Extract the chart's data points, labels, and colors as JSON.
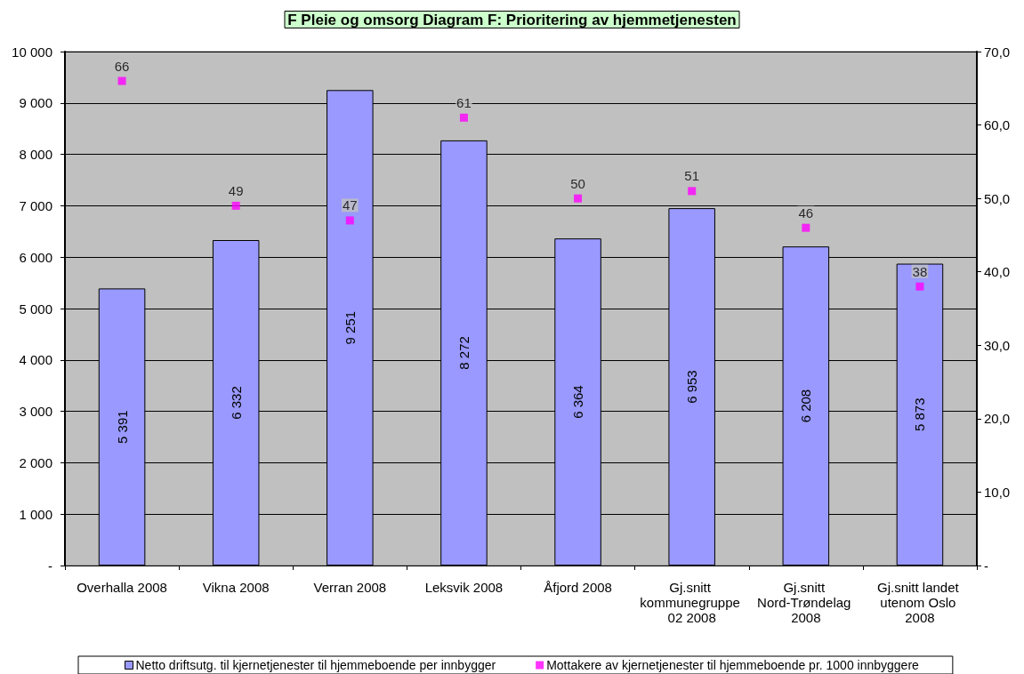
{
  "chart_data": {
    "type": "bar",
    "title": "F Pleie og omsorg Diagram F: Prioritering av hjemmetjenesten",
    "categories": [
      "Overhalla 2008",
      "Vikna 2008",
      "Verran 2008",
      "Leksvik 2008",
      "Åfjord 2008",
      "Gj.snitt kommunegruppe 02 2008",
      "Gj.snitt Nord-Trøndelag 2008",
      "Gj.snitt landet utenom Oslo 2008"
    ],
    "series": [
      {
        "name": "Netto driftsutg. til kjernetjenester til hjemmeboende per innbygger",
        "color": "#9999ff",
        "values": [
          5391,
          6332,
          9251,
          8272,
          6364,
          6953,
          6208,
          5873
        ],
        "value_labels": [
          "5 391",
          "6 332",
          "9 251",
          "8 272",
          "6 364",
          "6 953",
          "6 208",
          "5 873"
        ]
      },
      {
        "name": "Mottakere av kjernetjenester til hjemmeboende pr. 1000 innbyggere",
        "type": "scatter",
        "axis": "y2",
        "color": "#ff00ff",
        "values": [
          66,
          49,
          47,
          61,
          50,
          51,
          46,
          38
        ],
        "value_labels": [
          "66",
          "49",
          "47",
          "61",
          "50",
          "51",
          "46",
          "38"
        ]
      }
    ],
    "ylim": [
      0,
      10000
    ],
    "yticks": [
      {
        "value": 0,
        "label": "-"
      },
      {
        "value": 1000,
        "label": "1 000"
      },
      {
        "value": 2000,
        "label": "2 000"
      },
      {
        "value": 3000,
        "label": "3 000"
      },
      {
        "value": 4000,
        "label": "4 000"
      },
      {
        "value": 5000,
        "label": "5 000"
      },
      {
        "value": 6000,
        "label": "6 000"
      },
      {
        "value": 7000,
        "label": "7 000"
      },
      {
        "value": 8000,
        "label": "8 000"
      },
      {
        "value": 9000,
        "label": "9 000"
      },
      {
        "value": 10000,
        "label": "10 000"
      }
    ],
    "y2lim": [
      0,
      70
    ],
    "y2ticks": [
      {
        "value": 0,
        "label": "-"
      },
      {
        "value": 10,
        "label": "10,0"
      },
      {
        "value": 20,
        "label": "20,0"
      },
      {
        "value": 30,
        "label": "30,0"
      },
      {
        "value": 40,
        "label": "40,0"
      },
      {
        "value": 50,
        "label": "50,0"
      },
      {
        "value": 60,
        "label": "60,0"
      },
      {
        "value": 70,
        "label": "70,0"
      }
    ],
    "grid": "y",
    "legend": "bottom",
    "marker": "square"
  }
}
